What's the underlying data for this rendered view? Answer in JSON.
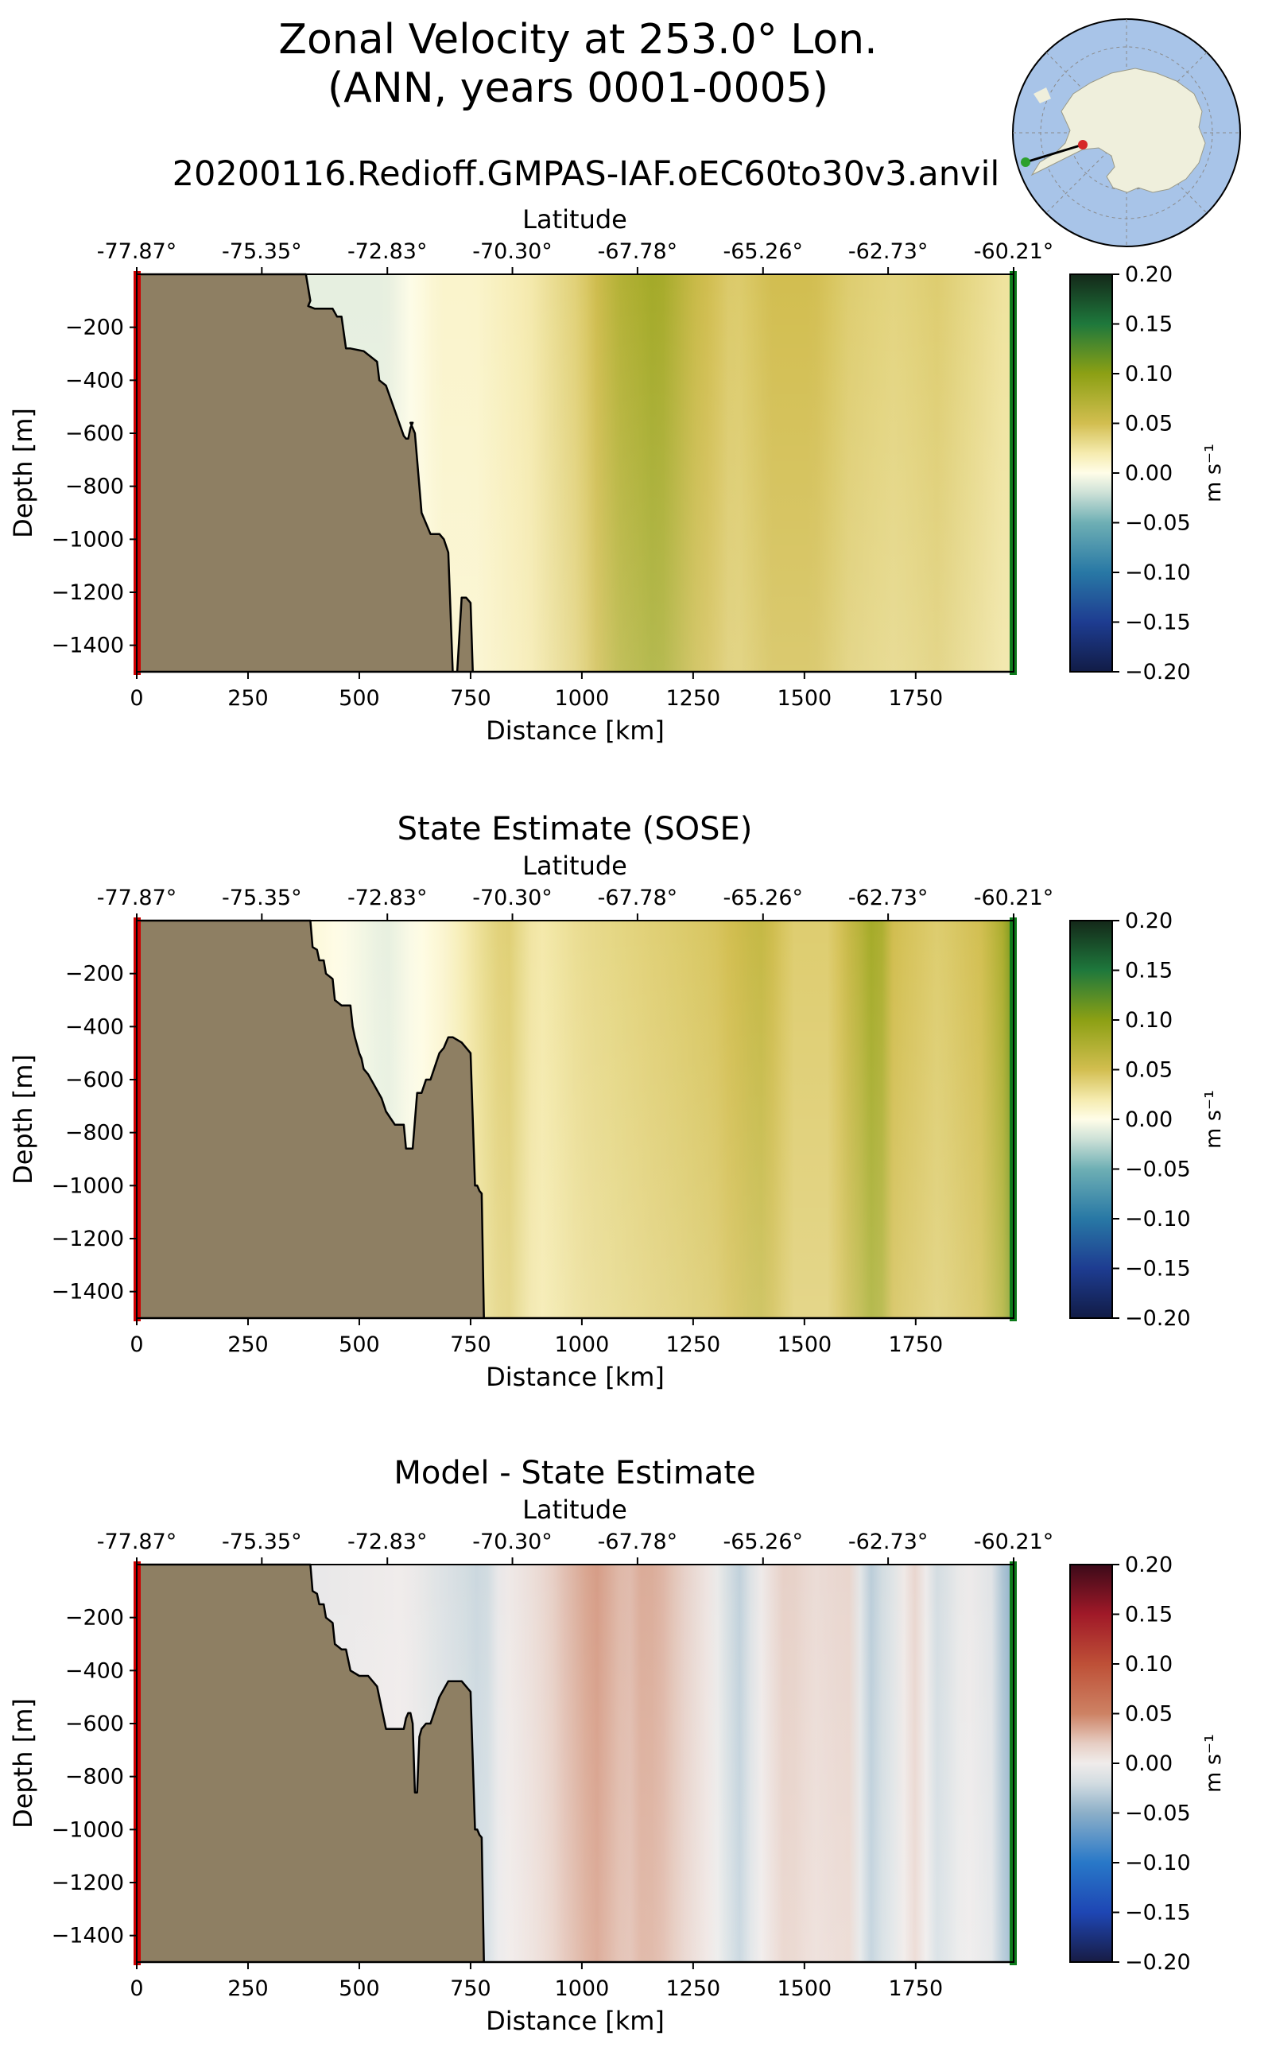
{
  "figure": {
    "title_line1": "Zonal Velocity at 253.0° Lon.",
    "title_line2": "(ANN, years 0001-0005)",
    "run_name": "20200116.Redioff.GMPAS-IAF.oEC60to30v3.anvil"
  },
  "inset_map": {
    "label": "Antarctic polar stereographic inset map",
    "transect_start_color": "#d62728",
    "transect_end_color": "#2ca02c",
    "ocean_color": "#a8c4e8",
    "land_color": "#efefdc"
  },
  "colors": {
    "land": "#8e7f63",
    "start_marker": "#cc0000",
    "end_marker": "#0c7a1a"
  },
  "chart_data": [
    {
      "type": "heatmap",
      "title": "",
      "xlabel": "Distance [km]",
      "ylabel": "Depth [m]",
      "top_axis_label": "Latitude",
      "xlim": [
        0,
        1970
      ],
      "ylim": [
        -1500,
        0
      ],
      "x_ticks": [
        0,
        250,
        500,
        750,
        1000,
        1250,
        1500,
        1750
      ],
      "y_ticks": [
        -200,
        -400,
        -600,
        -800,
        -1000,
        -1200,
        -1400
      ],
      "latitude_ticks": [
        "-77.87°",
        "-75.35°",
        "-72.83°",
        "-70.30°",
        "-67.78°",
        "-65.26°",
        "-62.73°",
        "-60.21°"
      ],
      "latitude_tick_positions_km": [
        0,
        281,
        563,
        844,
        1125,
        1407,
        1688,
        1970
      ],
      "colorbar": {
        "label": "m s⁻¹",
        "min": -0.2,
        "max": 0.2,
        "ticks": [
          "0.20",
          "0.15",
          "0.10",
          "0.05",
          "0.00",
          "−0.05",
          "−0.10",
          "−0.15",
          "−0.20"
        ],
        "colormap": "delta"
      },
      "field_profile": {
        "distance_km": [
          0,
          380,
          560,
          680,
          760,
          880,
          1000,
          1080,
          1170,
          1260,
          1340,
          1430,
          1520,
          1600,
          1700,
          1800,
          1900,
          1950
        ],
        "velocity_m_s": [
          0.0,
          -0.01,
          -0.01,
          0.01,
          0.01,
          0.02,
          0.04,
          0.07,
          0.085,
          0.055,
          0.04,
          0.05,
          0.05,
          0.04,
          0.035,
          0.04,
          0.03,
          0.025
        ]
      },
      "bathymetry": {
        "distance_km": [
          0,
          380,
          385,
          390,
          385,
          400,
          440,
          450,
          460,
          470,
          480,
          510,
          540,
          545,
          560,
          600,
          605,
          610,
          615,
          620,
          615,
          620,
          625,
          640,
          660,
          680,
          690,
          700,
          710,
          720,
          730,
          740,
          750,
          755,
          760,
          770,
          1970
        ],
        "depth_m": [
          0,
          0,
          -50,
          -100,
          -120,
          -130,
          -130,
          -160,
          -160,
          -280,
          -280,
          -290,
          -330,
          -400,
          -420,
          -610,
          -620,
          -620,
          -580,
          -560,
          -560,
          -580,
          -600,
          -900,
          -980,
          -980,
          -1000,
          -1050,
          -1500,
          -1500,
          -1220,
          -1220,
          -1240,
          -1500,
          -1500,
          -1500,
          -1500
        ]
      }
    },
    {
      "type": "heatmap",
      "title": "State Estimate (SOSE)",
      "xlabel": "Distance [km]",
      "ylabel": "Depth [m]",
      "top_axis_label": "Latitude",
      "xlim": [
        0,
        1970
      ],
      "ylim": [
        -1500,
        0
      ],
      "x_ticks": [
        0,
        250,
        500,
        750,
        1000,
        1250,
        1500,
        1750
      ],
      "y_ticks": [
        -200,
        -400,
        -600,
        -800,
        -1000,
        -1200,
        -1400
      ],
      "latitude_ticks": [
        "-77.87°",
        "-75.35°",
        "-72.83°",
        "-70.30°",
        "-67.78°",
        "-65.26°",
        "-62.73°",
        "-60.21°"
      ],
      "latitude_tick_positions_km": [
        0,
        281,
        563,
        844,
        1125,
        1407,
        1688,
        1970
      ],
      "colorbar": {
        "label": "m s⁻¹",
        "min": -0.2,
        "max": 0.2,
        "ticks": [
          "0.20",
          "0.15",
          "0.10",
          "0.05",
          "0.00",
          "−0.05",
          "−0.10",
          "−0.15",
          "−0.20"
        ],
        "colormap": "delta"
      },
      "field_profile": {
        "distance_km": [
          0,
          400,
          560,
          700,
          780,
          830,
          900,
          1000,
          1100,
          1200,
          1300,
          1400,
          1470,
          1560,
          1640,
          1660,
          1700,
          1800,
          1900,
          1950,
          1965
        ],
        "velocity_m_s": [
          0.0,
          0.005,
          -0.01,
          0.01,
          0.03,
          0.04,
          0.02,
          0.03,
          0.035,
          0.04,
          0.045,
          0.06,
          0.04,
          0.04,
          0.075,
          0.09,
          0.05,
          0.04,
          0.05,
          0.08,
          0.11
        ]
      },
      "bathymetry": {
        "distance_km": [
          0,
          390,
          395,
          405,
          410,
          420,
          425,
          440,
          445,
          460,
          480,
          485,
          490,
          500,
          505,
          510,
          520,
          540,
          550,
          560,
          580,
          600,
          605,
          620,
          630,
          640,
          650,
          660,
          680,
          690,
          700,
          710,
          730,
          750,
          760,
          765,
          770,
          775,
          780,
          1970
        ],
        "depth_m": [
          0,
          0,
          -100,
          -110,
          -150,
          -150,
          -200,
          -220,
          -300,
          -320,
          -320,
          -400,
          -440,
          -500,
          -520,
          -560,
          -580,
          -640,
          -670,
          -720,
          -770,
          -770,
          -860,
          -860,
          -650,
          -650,
          -600,
          -600,
          -500,
          -480,
          -440,
          -440,
          -460,
          -500,
          -1000,
          -1000,
          -1020,
          -1030,
          -1500,
          -1500
        ]
      }
    },
    {
      "type": "heatmap",
      "title": "Model - State Estimate",
      "xlabel": "Distance [km]",
      "ylabel": "Depth [m]",
      "top_axis_label": "Latitude",
      "xlim": [
        0,
        1970
      ],
      "ylim": [
        -1500,
        0
      ],
      "x_ticks": [
        0,
        250,
        500,
        750,
        1000,
        1250,
        1500,
        1750
      ],
      "y_ticks": [
        -200,
        -400,
        -600,
        -800,
        -1000,
        -1200,
        -1400
      ],
      "latitude_ticks": [
        "-77.87°",
        "-75.35°",
        "-72.83°",
        "-70.30°",
        "-67.78°",
        "-65.26°",
        "-62.73°",
        "-60.21°"
      ],
      "latitude_tick_positions_km": [
        0,
        281,
        563,
        844,
        1125,
        1407,
        1688,
        1970
      ],
      "colorbar": {
        "label": "m s⁻¹",
        "min": -0.2,
        "max": 0.2,
        "ticks": [
          "0.20",
          "0.15",
          "0.10",
          "0.05",
          "0.00",
          "−0.05",
          "−0.10",
          "−0.15",
          "−0.20"
        ],
        "colormap": "balance"
      },
      "field_profile": {
        "distance_km": [
          0,
          400,
          600,
          780,
          820,
          900,
          960,
          1030,
          1100,
          1140,
          1180,
          1240,
          1300,
          1350,
          1400,
          1460,
          1520,
          1600,
          1650,
          1700,
          1750,
          1800,
          1860,
          1920,
          1960
        ],
        "velocity_m_s": [
          0.0,
          -0.005,
          0.0,
          -0.025,
          0.0,
          0.01,
          0.025,
          0.04,
          0.025,
          0.035,
          0.03,
          0.015,
          0.0,
          -0.03,
          0.0,
          0.02,
          0.01,
          0.015,
          -0.03,
          -0.01,
          0.015,
          -0.02,
          0.0,
          -0.01,
          -0.05
        ]
      },
      "bathymetry": {
        "distance_km": [
          0,
          390,
          395,
          405,
          410,
          420,
          425,
          440,
          445,
          460,
          470,
          475,
          480,
          500,
          520,
          540,
          545,
          560,
          600,
          605,
          610,
          615,
          620,
          625,
          630,
          635,
          640,
          650,
          660,
          680,
          690,
          700,
          710,
          730,
          750,
          760,
          765,
          770,
          775,
          780,
          1970
        ],
        "depth_m": [
          0,
          0,
          -100,
          -110,
          -150,
          -150,
          -200,
          -220,
          -300,
          -320,
          -320,
          -360,
          -400,
          -420,
          -420,
          -460,
          -500,
          -620,
          -620,
          -580,
          -560,
          -560,
          -600,
          -860,
          -860,
          -650,
          -620,
          -600,
          -600,
          -500,
          -470,
          -440,
          -440,
          -440,
          -480,
          -1000,
          -1000,
          -1020,
          -1030,
          -1500,
          -1500
        ]
      }
    }
  ]
}
